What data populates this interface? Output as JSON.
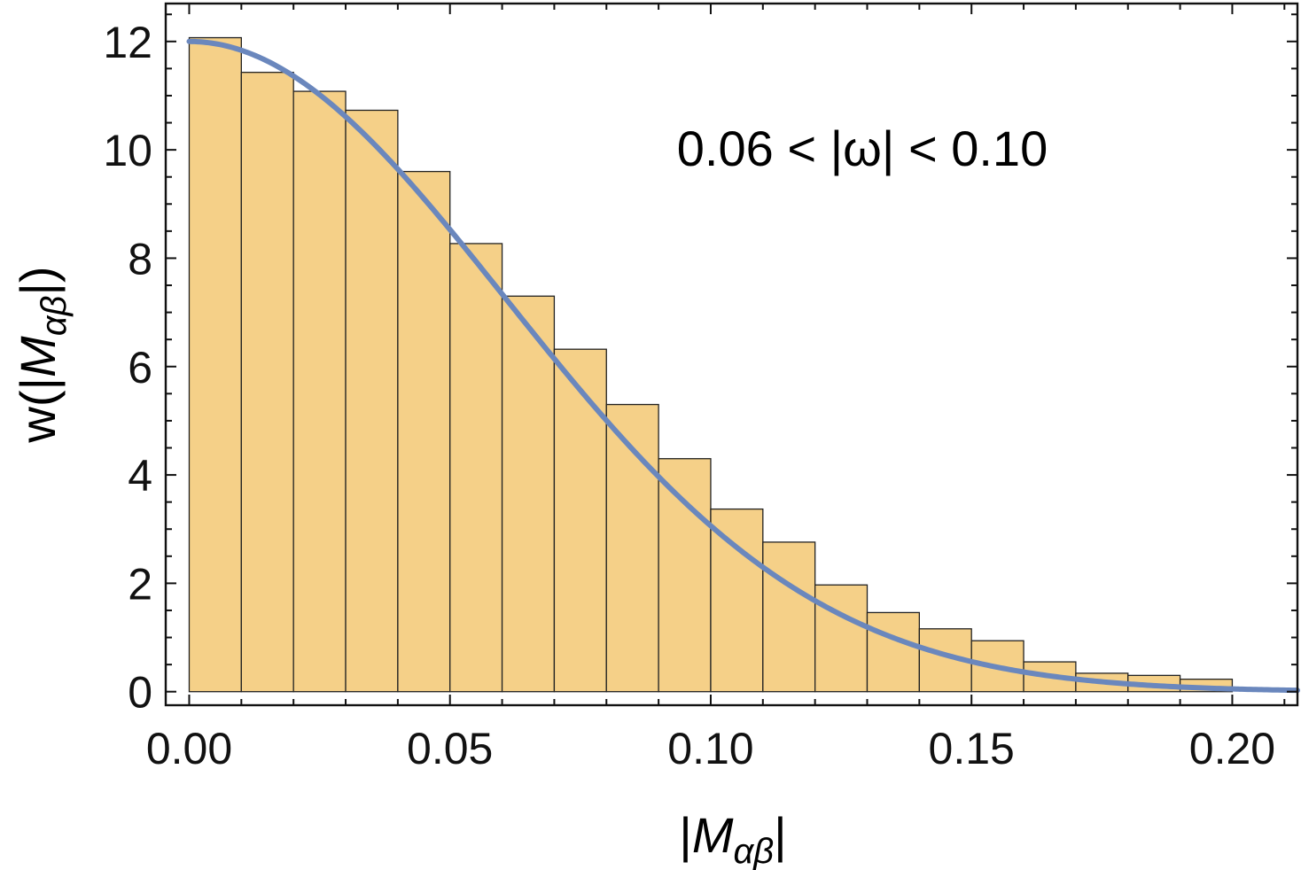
{
  "chart_data": {
    "type": "bar",
    "annotation": "0.06 < |ω| < 0.10",
    "xlabel": "|Mαβ|",
    "ylabel": "w(|Mαβ|)",
    "xlim": [
      -0.0045,
      0.2125
    ],
    "ylim": [
      -0.25,
      12.7
    ],
    "x_ticks": [
      {
        "value": 0.0,
        "label": "0.00"
      },
      {
        "value": 0.05,
        "label": "0.05"
      },
      {
        "value": 0.1,
        "label": "0.10"
      },
      {
        "value": 0.15,
        "label": "0.15"
      },
      {
        "value": 0.2,
        "label": "0.20"
      }
    ],
    "y_ticks": [
      {
        "value": 0,
        "label": "0"
      },
      {
        "value": 2,
        "label": "2"
      },
      {
        "value": 4,
        "label": "4"
      },
      {
        "value": 6,
        "label": "6"
      },
      {
        "value": 8,
        "label": "8"
      },
      {
        "value": 10,
        "label": "10"
      },
      {
        "value": 12,
        "label": "12"
      }
    ],
    "bin_width": 0.01,
    "bin_starts": [
      0.0,
      0.01,
      0.02,
      0.03,
      0.04,
      0.05,
      0.06,
      0.07,
      0.08,
      0.09,
      0.1,
      0.11,
      0.12,
      0.13,
      0.14,
      0.15,
      0.16,
      0.17,
      0.18,
      0.19
    ],
    "values": [
      12.07,
      11.43,
      11.08,
      10.73,
      9.6,
      8.27,
      7.3,
      6.32,
      5.3,
      4.3,
      3.37,
      2.76,
      1.97,
      1.46,
      1.16,
      0.94,
      0.55,
      0.34,
      0.3,
      0.23
    ],
    "fit_curve": {
      "type": "gaussian",
      "amplitude": 12.0,
      "sigma": 0.0605
    },
    "colors": {
      "bar_fill": "#f5d088",
      "bar_stroke": "#222222",
      "curve": "#6a87bd"
    },
    "grid": false,
    "legend": "none"
  }
}
